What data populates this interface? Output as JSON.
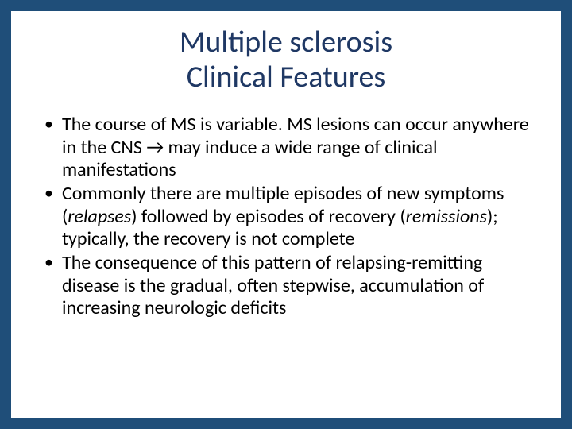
{
  "background_color": "#1f4e79",
  "slide_background": "#ffffff",
  "title_color": "#1f3864",
  "text_color": "#000000",
  "title_fontsize": 38,
  "body_fontsize": 24,
  "title_line1": "Multiple sclerosis",
  "title_line2": "Clinical Features",
  "bullets": [
    {
      "pre": "The course of MS is variable. MS lesions can occur anywhere in the CNS ",
      "arrow": "→",
      "post": " may induce a wide range of clinical manifestations"
    },
    {
      "pre": "Commonly there are multiple episodes of new symptoms (",
      "em1": "relapses",
      "mid": ") followed by episodes of recovery (",
      "em2": "remissions",
      "post": "); typically, the recovery is not complete"
    },
    {
      "text": "The consequence of this pattern of relapsing-remitting disease is the gradual, often stepwise, accumulation of increasing neurologic deficits"
    }
  ]
}
